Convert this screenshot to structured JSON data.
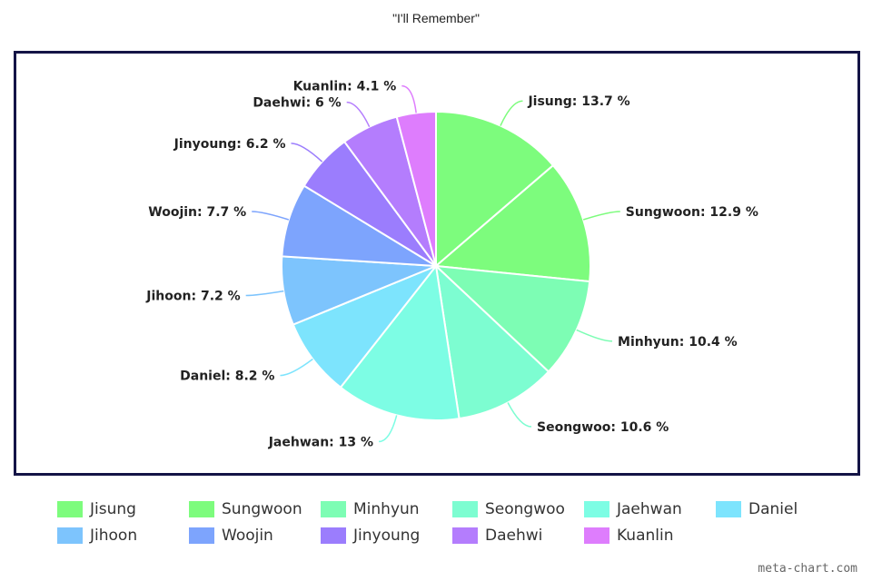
{
  "chart_data": {
    "type": "pie",
    "title": "\"I'll Remember\"",
    "slices": [
      {
        "name": "Jisung",
        "value": 13.7,
        "label": "Jisung: 13.7 %",
        "color": "#7dfc7d"
      },
      {
        "name": "Sungwoon",
        "value": 12.9,
        "label": "Sungwoon: 12.9 %",
        "color": "#7dfc7d"
      },
      {
        "name": "Minhyun",
        "value": 10.4,
        "label": "Minhyun: 10.4 %",
        "color": "#7dfdb4"
      },
      {
        "name": "Seongwoo",
        "value": 10.6,
        "label": "Seongwoo: 10.6 %",
        "color": "#7dfdd1"
      },
      {
        "name": "Jaehwan",
        "value": 13,
        "label": "Jaehwan: 13 %",
        "color": "#7dfde4"
      },
      {
        "name": "Daniel",
        "value": 8.2,
        "label": "Daniel: 8.2 %",
        "color": "#7de4fd"
      },
      {
        "name": "Jihoon",
        "value": 7.2,
        "label": "Jihoon: 7.2 %",
        "color": "#7dc4fd"
      },
      {
        "name": "Woojin",
        "value": 7.7,
        "label": "Woojin: 7.7 %",
        "color": "#7da4fd"
      },
      {
        "name": "Jinyoung",
        "value": 6.2,
        "label": "Jinyoung: 6.2 %",
        "color": "#9b7dfd"
      },
      {
        "name": "Daehwi",
        "value": 6,
        "label": "Daehwi: 6 %",
        "color": "#b47dfd"
      },
      {
        "name": "Kuanlin",
        "value": 4.1,
        "label": "Kuanlin: 4.1 %",
        "color": "#de7dfd"
      }
    ],
    "legend_position": "bottom"
  },
  "credit": "meta-chart.com"
}
